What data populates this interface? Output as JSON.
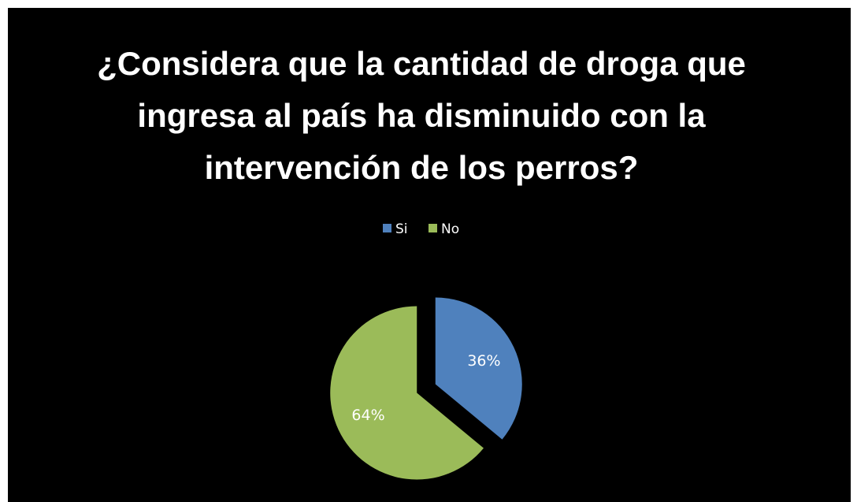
{
  "chart_data": {
    "type": "pie",
    "title": "¿Considera que la cantidad de droga que ingresa al país ha disminuido con la intervención de los perros?",
    "categories": [
      "Si",
      "No"
    ],
    "values": [
      36,
      64
    ],
    "value_labels": [
      "36%",
      "64%"
    ],
    "colors": [
      "#4f81bd",
      "#9bbb59"
    ],
    "legend": "top"
  }
}
